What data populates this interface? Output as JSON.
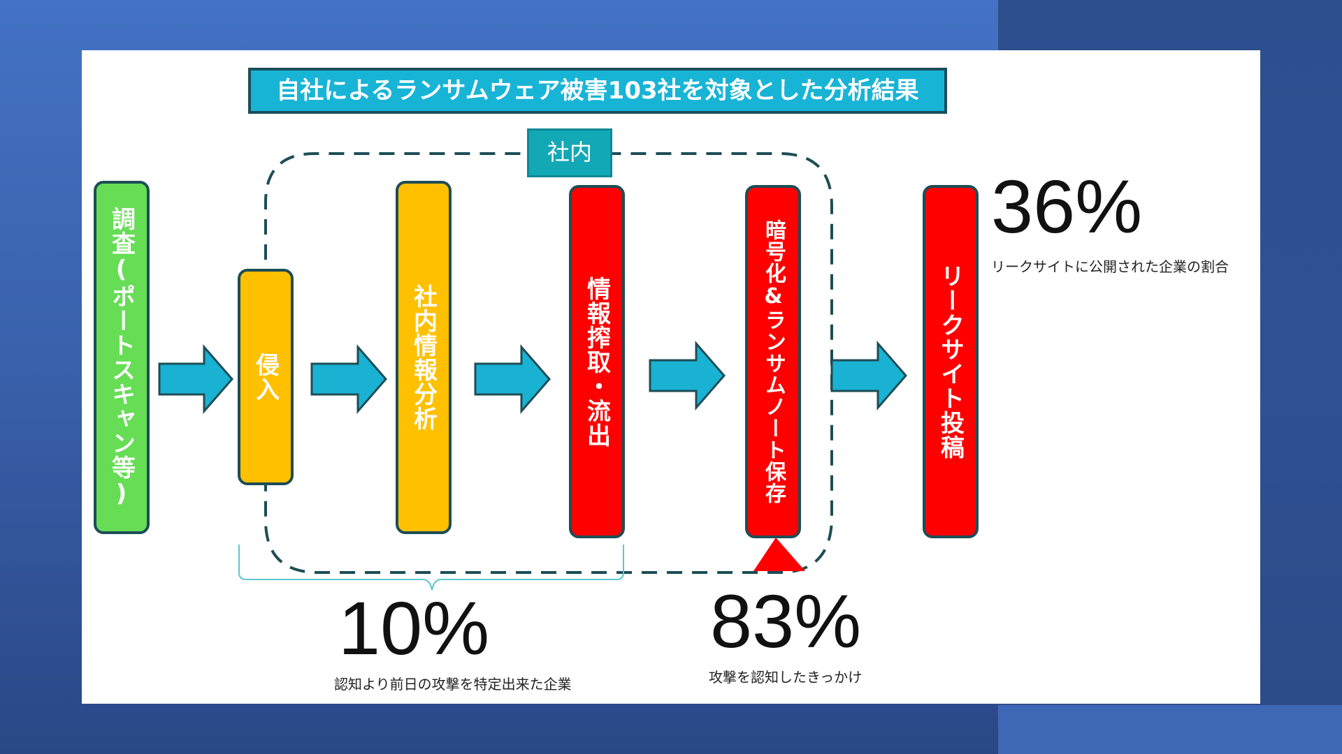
{
  "title": "自社によるランサムウェア被害103社を対象とした分析結果",
  "inside_tag": "社内",
  "steps": [
    {
      "label": "調査(ポートスキャン等)",
      "color": "#66dd55"
    },
    {
      "label": "侵入",
      "color": "#ffc000"
    },
    {
      "label": "社内情報分析",
      "color": "#ffc000"
    },
    {
      "label": "情報搾取・流出",
      "color": "#ff0000"
    },
    {
      "label": "暗号化&ランサムノート保存",
      "color": "#ff0000"
    },
    {
      "label": "リークサイト投稿",
      "color": "#ff0000"
    }
  ],
  "stats": [
    {
      "value": "36%",
      "caption": "リークサイトに公開された企業の割合"
    },
    {
      "value": "10%",
      "caption": "認知より前日の攻撃を特定出来た企業"
    },
    {
      "value": "83%",
      "caption": "攻撃を認知したきっかけ"
    }
  ],
  "colors": {
    "arrow": "#1ab2d2",
    "dash": "#1d4d56",
    "marker": "#ff0000",
    "bracket": "#5cc6cf"
  }
}
